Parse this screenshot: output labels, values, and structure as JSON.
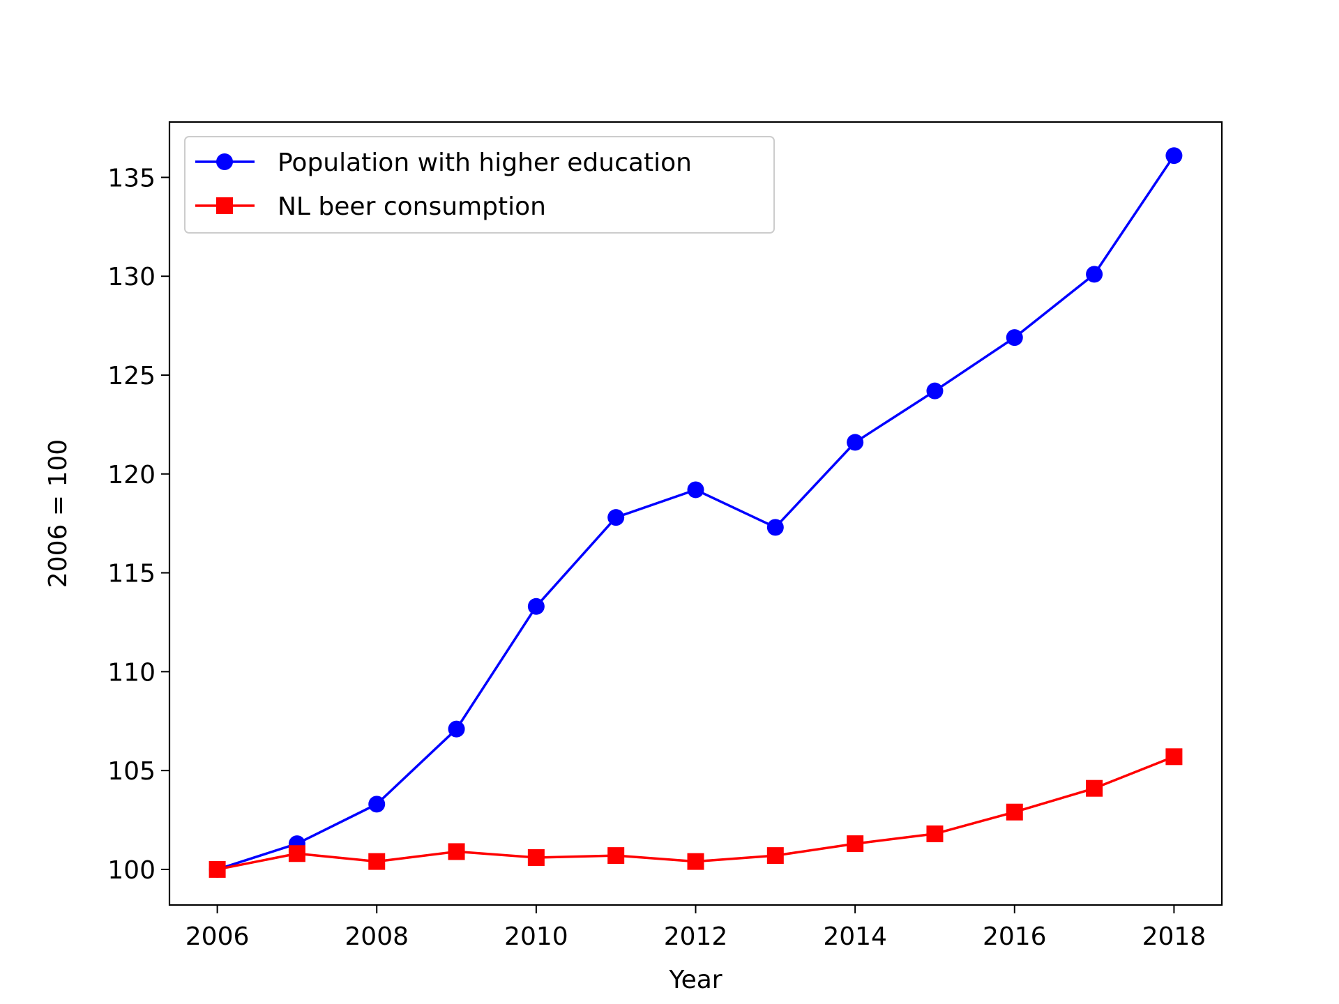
{
  "chart_data": {
    "type": "line",
    "title": "",
    "xlabel": "Year",
    "ylabel": "2006 = 100",
    "x": [
      2006,
      2007,
      2008,
      2009,
      2010,
      2011,
      2012,
      2013,
      2014,
      2015,
      2016,
      2017,
      2018
    ],
    "xlim": [
      2005.4,
      2018.6
    ],
    "ylim": [
      98.2,
      137.8
    ],
    "xticks": [
      2006,
      2008,
      2010,
      2012,
      2014,
      2016,
      2018
    ],
    "yticks": [
      100,
      105,
      110,
      115,
      120,
      125,
      130,
      135
    ],
    "grid": false,
    "legend_position": "upper-left",
    "series": [
      {
        "name": "Population with higher education",
        "color": "#0000ff",
        "marker": "circle",
        "values": [
          100.0,
          101.3,
          103.3,
          107.1,
          113.3,
          117.8,
          119.2,
          117.3,
          121.6,
          124.2,
          126.9,
          130.1,
          136.1
        ]
      },
      {
        "name": "NL beer consumption",
        "color": "#ff0000",
        "marker": "square",
        "values": [
          100.0,
          100.8,
          100.4,
          100.9,
          100.6,
          100.7,
          100.4,
          100.7,
          101.3,
          101.8,
          102.9,
          104.1,
          105.7
        ]
      }
    ]
  }
}
